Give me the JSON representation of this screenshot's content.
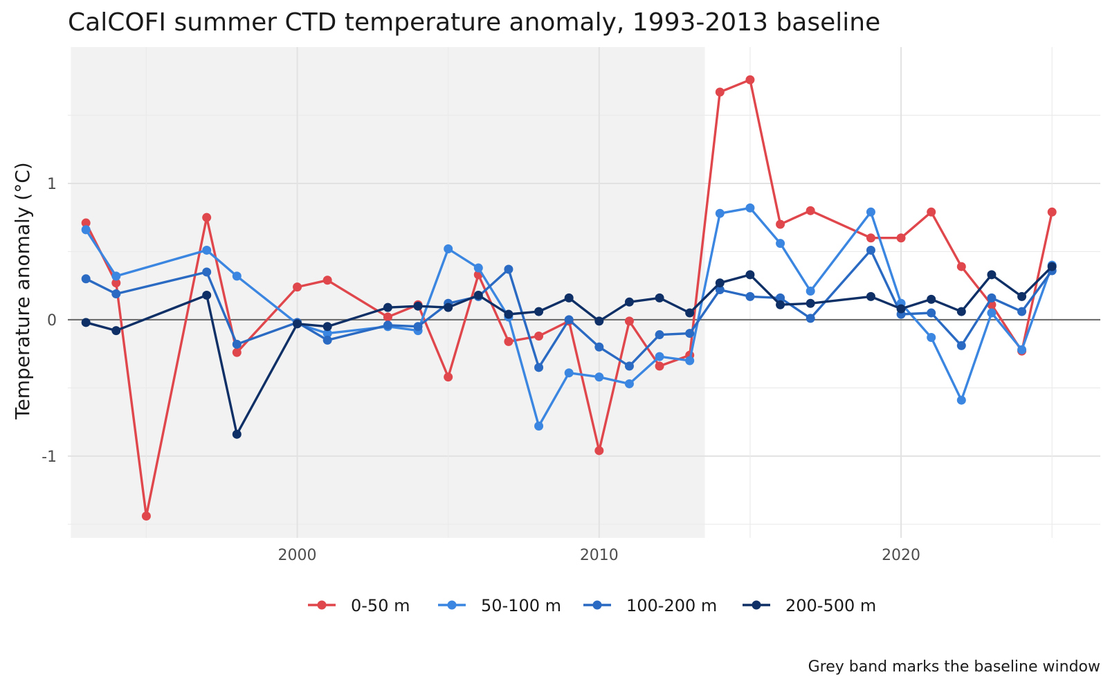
{
  "chart_data": {
    "type": "line",
    "title": "CalCOFI summer CTD temperature anomaly, 1993-2013 baseline",
    "xlabel": "",
    "ylabel": "Temperature anomaly (°C)",
    "caption": "Grey band marks the baseline window",
    "x": [
      1993,
      1994,
      1995,
      1997,
      1998,
      2000,
      2001,
      2003,
      2004,
      2005,
      2006,
      2007,
      2008,
      2009,
      2010,
      2011,
      2012,
      2013,
      2014,
      2015,
      2016,
      2017,
      2019,
      2020,
      2021,
      2022,
      2023,
      2024,
      2025
    ],
    "xlim": [
      1992.4,
      2026.6
    ],
    "ylim": [
      -1.6,
      2.0
    ],
    "x_ticks": [
      2000,
      2010,
      2020
    ],
    "y_ticks": [
      -1,
      0,
      1
    ],
    "baseline_window": [
      1992.5,
      2013.5
    ],
    "reference_line": 0,
    "grid": true,
    "legend_position": "bottom",
    "series": [
      {
        "name": "0-50 m",
        "color": "#e0474c",
        "values": [
          0.71,
          0.27,
          -1.44,
          0.75,
          -0.24,
          0.24,
          0.29,
          0.02,
          0.11,
          -0.42,
          0.33,
          -0.16,
          -0.12,
          -0.01,
          -0.96,
          -0.01,
          -0.34,
          -0.26,
          1.67,
          1.76,
          0.7,
          0.8,
          0.6,
          0.6,
          0.79,
          0.39,
          0.11,
          -0.23,
          0.79
        ]
      },
      {
        "name": "50-100 m",
        "color": "#3b86e0",
        "values": [
          0.66,
          0.32,
          null,
          0.51,
          0.32,
          -0.03,
          -0.1,
          -0.05,
          -0.08,
          0.52,
          0.38,
          0.02,
          -0.78,
          -0.39,
          -0.42,
          -0.47,
          -0.27,
          -0.3,
          0.78,
          0.82,
          0.56,
          0.21,
          0.79,
          0.12,
          -0.13,
          -0.59,
          0.05,
          -0.22,
          0.4
        ]
      },
      {
        "name": "100-200 m",
        "color": "#2a6ac2",
        "values": [
          0.3,
          0.19,
          null,
          0.35,
          -0.18,
          -0.02,
          -0.15,
          -0.04,
          -0.05,
          0.12,
          0.17,
          0.37,
          -0.35,
          0.0,
          -0.2,
          -0.34,
          -0.11,
          -0.1,
          0.22,
          0.17,
          0.16,
          0.01,
          0.51,
          0.04,
          0.05,
          -0.19,
          0.16,
          0.06,
          0.36
        ]
      },
      {
        "name": "200-500 m",
        "color": "#0f3066",
        "values": [
          -0.02,
          -0.08,
          null,
          0.18,
          -0.84,
          -0.03,
          -0.05,
          0.09,
          0.1,
          0.09,
          0.18,
          0.04,
          0.06,
          0.16,
          -0.01,
          0.13,
          0.16,
          0.05,
          0.27,
          0.33,
          0.11,
          0.12,
          0.17,
          0.08,
          0.15,
          0.06,
          0.33,
          0.17,
          0.39
        ]
      }
    ]
  }
}
